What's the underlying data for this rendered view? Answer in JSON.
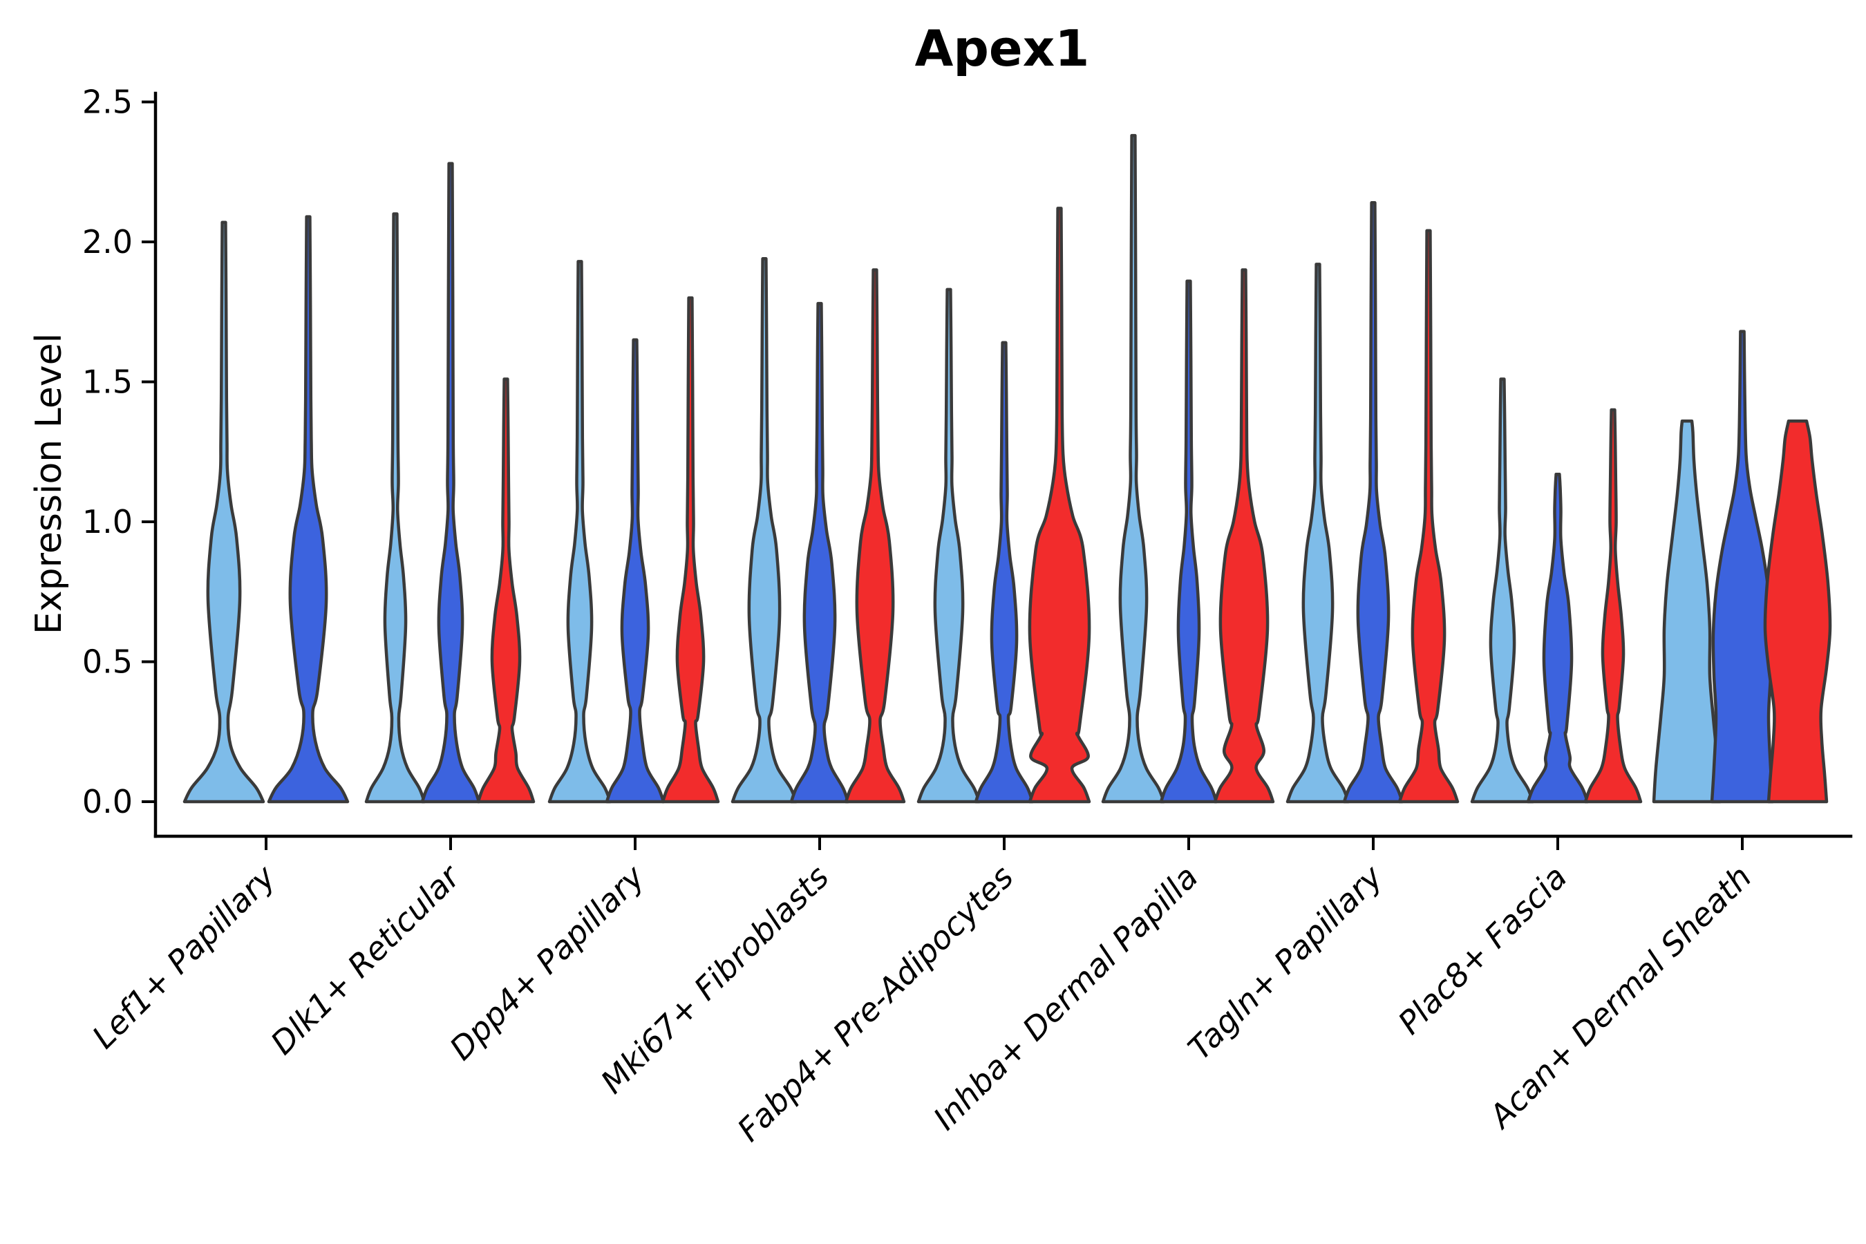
{
  "title": "Apex1",
  "ylabel": "Expression Level",
  "palette": {
    "c1": "#7EBCE9",
    "c2": "#3C63DE",
    "c3": "#F22C2C",
    "outline": "#3A3A3A"
  },
  "chart_data": {
    "type": "violin",
    "title": "Apex1",
    "xlabel": "",
    "ylabel": "Expression Level",
    "ylim": [
      0,
      2.5
    ],
    "yticks": [
      "0.0",
      "0.5",
      "1.0",
      "1.5",
      "2.0",
      "2.5"
    ],
    "grid": false,
    "legend": "none",
    "categories": [
      "Lef1+ Papillary",
      "Dlk1+ Reticular",
      "Dpp4+ Papillary",
      "Mki67+ Fibroblasts",
      "Fabp4+ Pre-Adipocytes",
      "Inhba+ Dermal Papilla",
      "Tagln+ Papillary",
      "Plac8+ Fascia",
      "Acan+ Dermal Sheath"
    ],
    "violins_per_category": [
      2,
      3,
      3,
      3,
      3,
      3,
      3,
      3,
      3
    ],
    "groups": [
      {
        "category": "Lef1+ Papillary",
        "violins": [
          {
            "color": "c1",
            "max": 2.07,
            "foot": 57,
            "pinch_v": 0.3,
            "pinch_w": 6.0,
            "bulge_v": 0.72,
            "bulge_w": 23,
            "spread": 0.22
          },
          {
            "color": "c2",
            "max": 2.09,
            "foot": 57,
            "pinch_v": 0.32,
            "pinch_w": 6.5,
            "bulge_v": 0.71,
            "bulge_w": 26,
            "spread": 0.23
          }
        ]
      },
      {
        "category": "Dlk1+ Reticular",
        "violins": [
          {
            "color": "c1",
            "max": 2.1,
            "foot": 42,
            "pinch_v": 0.3,
            "pinch_w": 5.0,
            "bulge_v": 0.63,
            "bulge_w": 15,
            "spread": 0.17
          },
          {
            "color": "c2",
            "max": 2.28,
            "foot": 41,
            "pinch_v": 0.31,
            "pinch_w": 5.5,
            "bulge_v": 0.62,
            "bulge_w": 17,
            "spread": 0.18
          },
          {
            "color": "c3",
            "max": 1.51,
            "foot": 40,
            "pinch_v": 0.26,
            "pinch_w": 9.0,
            "bulge_v": 0.5,
            "bulge_w": 20,
            "spread": 0.16
          }
        ]
      },
      {
        "category": "Dpp4+ Papillary",
        "violins": [
          {
            "color": "c1",
            "max": 1.93,
            "foot": 44,
            "pinch_v": 0.31,
            "pinch_w": 5.5,
            "bulge_v": 0.62,
            "bulge_w": 17,
            "spread": 0.18
          },
          {
            "color": "c2",
            "max": 1.65,
            "foot": 41,
            "pinch_v": 0.32,
            "pinch_w": 6.5,
            "bulge_v": 0.6,
            "bulge_w": 19,
            "spread": 0.17
          },
          {
            "color": "c3",
            "max": 1.8,
            "foot": 40,
            "pinch_v": 0.28,
            "pinch_w": 7.5,
            "bulge_v": 0.5,
            "bulge_w": 19,
            "spread": 0.16
          }
        ]
      },
      {
        "category": "Mki67+ Fibroblasts",
        "violins": [
          {
            "color": "c1",
            "max": 1.94,
            "foot": 46,
            "pinch_v": 0.29,
            "pinch_w": 6.5,
            "bulge_v": 0.66,
            "bulge_w": 22,
            "spread": 0.24
          },
          {
            "color": "c2",
            "max": 1.78,
            "foot": 41,
            "pinch_v": 0.27,
            "pinch_w": 6.5,
            "bulge_v": 0.63,
            "bulge_w": 22,
            "spread": 0.22
          },
          {
            "color": "c3",
            "max": 1.9,
            "foot": 42,
            "pinch_v": 0.29,
            "pinch_w": 7.5,
            "bulge_v": 0.68,
            "bulge_w": 26,
            "spread": 0.25
          }
        ]
      },
      {
        "category": "Fabp4+ Pre-Adipocytes",
        "violins": [
          {
            "color": "c1",
            "max": 1.83,
            "foot": 44,
            "pinch_v": 0.3,
            "pinch_w": 5.5,
            "bulge_v": 0.68,
            "bulge_w": 20,
            "spread": 0.21
          },
          {
            "color": "c2",
            "max": 1.64,
            "foot": 41,
            "pinch_v": 0.3,
            "pinch_w": 6.0,
            "bulge_v": 0.57,
            "bulge_w": 18,
            "spread": 0.19
          },
          {
            "color": "c3",
            "max": 2.12,
            "foot": 43,
            "pinch_v": 0.24,
            "pinch_w": 26.0,
            "bulge_v": 0.6,
            "bulge_w": 43,
            "spread": 0.3
          }
        ]
      },
      {
        "category": "Inhba+ Dermal Papilla",
        "violins": [
          {
            "color": "c1",
            "max": 2.38,
            "foot": 44,
            "pinch_v": 0.3,
            "pinch_w": 5.5,
            "bulge_v": 0.7,
            "bulge_w": 19,
            "spread": 0.2
          },
          {
            "color": "c2",
            "max": 1.86,
            "foot": 40,
            "pinch_v": 0.3,
            "pinch_w": 5.0,
            "bulge_v": 0.6,
            "bulge_w": 15,
            "spread": 0.19
          },
          {
            "color": "c3",
            "max": 1.9,
            "foot": 42,
            "pinch_v": 0.27,
            "pinch_w": 18.0,
            "bulge_v": 0.62,
            "bulge_w": 34,
            "spread": 0.26
          }
        ]
      },
      {
        "category": "Tagln+ Papillary",
        "violins": [
          {
            "color": "c1",
            "max": 1.92,
            "foot": 44,
            "pinch_v": 0.3,
            "pinch_w": 6.5,
            "bulge_v": 0.68,
            "bulge_w": 21,
            "spread": 0.21
          },
          {
            "color": "c2",
            "max": 2.14,
            "foot": 42,
            "pinch_v": 0.3,
            "pinch_w": 7.5,
            "bulge_v": 0.65,
            "bulge_w": 22,
            "spread": 0.22
          },
          {
            "color": "c3",
            "max": 2.04,
            "foot": 42,
            "pinch_v": 0.28,
            "pinch_w": 9.0,
            "bulge_v": 0.58,
            "bulge_w": 23,
            "spread": 0.2
          }
        ]
      },
      {
        "category": "Plac8+ Fascia",
        "violins": [
          {
            "color": "c1",
            "max": 1.51,
            "foot": 44,
            "pinch_v": 0.28,
            "pinch_w": 6.5,
            "bulge_v": 0.55,
            "bulge_w": 17,
            "spread": 0.16
          },
          {
            "color": "c2",
            "max": 1.17,
            "foot": 43,
            "pinch_v": 0.24,
            "pinch_w": 11.0,
            "bulge_v": 0.5,
            "bulge_w": 20,
            "spread": 0.2
          },
          {
            "color": "c3",
            "max": 1.4,
            "foot": 40,
            "pinch_v": 0.3,
            "pinch_w": 6.5,
            "bulge_v": 0.52,
            "bulge_w": 15,
            "spread": 0.14
          }
        ]
      },
      {
        "category": "Acan+ Dermal Sheath",
        "violins": [
          {
            "color": "c1",
            "max": 1.36,
            "points": [
              [
                0,
                48
              ],
              [
                0.12,
                45
              ],
              [
                0.3,
                38
              ],
              [
                0.45,
                33
              ],
              [
                0.62,
                33
              ],
              [
                0.78,
                29
              ],
              [
                0.95,
                21
              ],
              [
                1.1,
                14
              ],
              [
                1.22,
                10
              ],
              [
                1.32,
                8.5
              ],
              [
                1.36,
                7
              ]
            ]
          },
          {
            "color": "c2",
            "max": 1.68,
            "points": [
              [
                0,
                44
              ],
              [
                0.12,
                41
              ],
              [
                0.3,
                38
              ],
              [
                0.45,
                41
              ],
              [
                0.6,
                42
              ],
              [
                0.75,
                38
              ],
              [
                0.9,
                29
              ],
              [
                1.02,
                19
              ],
              [
                1.12,
                11
              ],
              [
                1.24,
                5.5
              ],
              [
                1.45,
                3.6
              ],
              [
                1.68,
                2.6
              ]
            ]
          },
          {
            "color": "c3",
            "max": 1.36,
            "points": [
              [
                0,
                42
              ],
              [
                0.1,
                39
              ],
              [
                0.22,
                35
              ],
              [
                0.33,
                34
              ],
              [
                0.48,
                42
              ],
              [
                0.62,
                47
              ],
              [
                0.78,
                44
              ],
              [
                0.95,
                36
              ],
              [
                1.1,
                27
              ],
              [
                1.22,
                21
              ],
              [
                1.3,
                18
              ],
              [
                1.36,
                13
              ]
            ]
          }
        ]
      }
    ]
  }
}
